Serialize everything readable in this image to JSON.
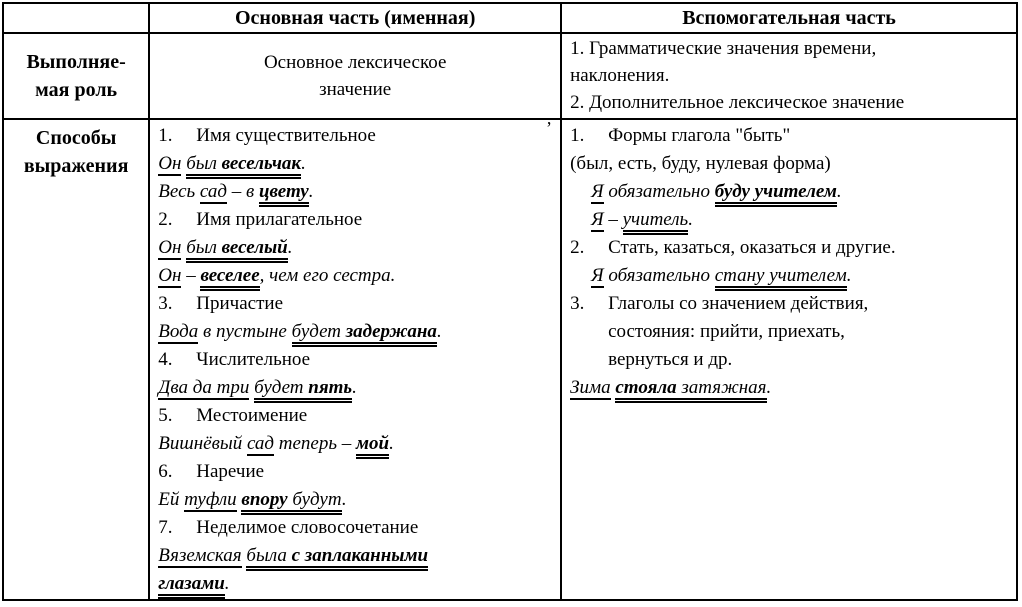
{
  "table": {
    "header": {
      "empty": "",
      "main": "Основная часть (именная)",
      "aux": "Вспомогательная часть"
    },
    "role_row": {
      "label": [
        "Выполняе-",
        "мая роль"
      ],
      "main": [
        "Основное лексическое",
        "значение"
      ],
      "aux_lines": [
        {
          "kind": "text",
          "segs": [
            {
              "t": "1. Грамматические значения времени,",
              "s": "plain"
            }
          ]
        },
        {
          "kind": "text",
          "segs": [
            {
              "t": "наклонения.",
              "s": "plain"
            }
          ]
        },
        {
          "kind": "text",
          "segs": [
            {
              "t": "2. Дополнительное лексическое значение",
              "s": "plain"
            }
          ]
        }
      ]
    },
    "ways_row": {
      "label": [
        "Способы",
        "выражения"
      ],
      "main_lines": [
        {
          "kind": "item",
          "segs": [
            {
              "t": "1.",
              "s": "num"
            },
            {
              "t": "Имя существительное",
              "s": "plain"
            }
          ]
        },
        {
          "kind": "example",
          "segs": [
            {
              "t": "Он",
              "s": "subj"
            },
            {
              "t": " ",
              "s": "plain"
            },
            {
              "t": "был ",
              "s": "pred"
            },
            {
              "t": "весельчак",
              "s": "predbold"
            },
            {
              "t": ".",
              "s": "plain"
            }
          ]
        },
        {
          "kind": "example",
          "segs": [
            {
              "t": "Весь ",
              "s": "plain"
            },
            {
              "t": "сад",
              "s": "subj"
            },
            {
              "t": " – в ",
              "s": "plain"
            },
            {
              "t": "цвету",
              "s": "predbold"
            },
            {
              "t": ".",
              "s": "plain"
            }
          ]
        },
        {
          "kind": "item",
          "segs": [
            {
              "t": "2.",
              "s": "num"
            },
            {
              "t": "Имя прилагательное",
              "s": "plain"
            }
          ]
        },
        {
          "kind": "example",
          "segs": [
            {
              "t": "Он",
              "s": "subj"
            },
            {
              "t": " ",
              "s": "plain"
            },
            {
              "t": "был ",
              "s": "pred"
            },
            {
              "t": "веселый",
              "s": "predbold"
            },
            {
              "t": ".",
              "s": "plain"
            }
          ]
        },
        {
          "kind": "example",
          "segs": [
            {
              "t": "Он",
              "s": "subj"
            },
            {
              "t": " – ",
              "s": "plain"
            },
            {
              "t": "веселее",
              "s": "predbold"
            },
            {
              "t": ", чем его сестра.",
              "s": "plain"
            }
          ]
        },
        {
          "kind": "item",
          "segs": [
            {
              "t": "3.",
              "s": "num"
            },
            {
              "t": "Причастие",
              "s": "plain"
            }
          ]
        },
        {
          "kind": "example",
          "segs": [
            {
              "t": "Вода",
              "s": "subj"
            },
            {
              "t": " в пустыне ",
              "s": "plain"
            },
            {
              "t": "будет ",
              "s": "pred"
            },
            {
              "t": "задержана",
              "s": "predbold"
            },
            {
              "t": ".",
              "s": "plain"
            }
          ]
        },
        {
          "kind": "item",
          "segs": [
            {
              "t": "4.",
              "s": "num"
            },
            {
              "t": "Числительное",
              "s": "plain"
            }
          ]
        },
        {
          "kind": "example",
          "segs": [
            {
              "t": "Два да три",
              "s": "subj"
            },
            {
              "t": " ",
              "s": "plain"
            },
            {
              "t": "будет ",
              "s": "pred"
            },
            {
              "t": "пять",
              "s": "predbold"
            },
            {
              "t": ".",
              "s": "plain"
            }
          ]
        },
        {
          "kind": "item",
          "segs": [
            {
              "t": "5.",
              "s": "num"
            },
            {
              "t": "Местоимение",
              "s": "plain"
            }
          ]
        },
        {
          "kind": "example",
          "segs": [
            {
              "t": "Вишнёвый ",
              "s": "plain"
            },
            {
              "t": "сад",
              "s": "subj"
            },
            {
              "t": " теперь – ",
              "s": "plain"
            },
            {
              "t": "мой",
              "s": "predbold"
            },
            {
              "t": ".",
              "s": "plain"
            }
          ]
        },
        {
          "kind": "item",
          "segs": [
            {
              "t": "6.",
              "s": "num"
            },
            {
              "t": "Наречие",
              "s": "plain"
            }
          ]
        },
        {
          "kind": "example",
          "segs": [
            {
              "t": "Ей ",
              "s": "plain"
            },
            {
              "t": "туфли",
              "s": "subj"
            },
            {
              "t": " ",
              "s": "plain"
            },
            {
              "t": "впору",
              "s": "predbold"
            },
            {
              "t": " будут",
              "s": "pred"
            },
            {
              "t": ".",
              "s": "plain"
            }
          ]
        },
        {
          "kind": "item",
          "segs": [
            {
              "t": "7.",
              "s": "num"
            },
            {
              "t": "Неделимое словосочетание",
              "s": "plain"
            }
          ]
        },
        {
          "kind": "example",
          "segs": [
            {
              "t": "Вяземская",
              "s": "subj"
            },
            {
              "t": " ",
              "s": "plain"
            },
            {
              "t": "была ",
              "s": "pred"
            },
            {
              "t": "с заплаканными",
              "s": "predbold"
            }
          ]
        },
        {
          "kind": "example",
          "segs": [
            {
              "t": "глазами",
              "s": "predbold"
            },
            {
              "t": ".",
              "s": "plain"
            }
          ]
        }
      ],
      "aux_lines": [
        {
          "kind": "item",
          "segs": [
            {
              "t": "1.",
              "s": "num"
            },
            {
              "t": "Формы глагола \"быть\"",
              "s": "plain"
            }
          ]
        },
        {
          "kind": "text",
          "segs": [
            {
              "t": "(был, есть, буду, нулевая форма)",
              "s": "plain"
            }
          ]
        },
        {
          "kind": "example",
          "ind": 1,
          "segs": [
            {
              "t": "Я",
              "s": "subj"
            },
            {
              "t": " обязательно ",
              "s": "plain"
            },
            {
              "t": "буду учителем",
              "s": "predbold"
            },
            {
              "t": ".",
              "s": "plain"
            }
          ]
        },
        {
          "kind": "example",
          "ind": 1,
          "segs": [
            {
              "t": "Я",
              "s": "subj"
            },
            {
              "t": " – ",
              "s": "plain"
            },
            {
              "t": "учитель",
              "s": "pred"
            },
            {
              "t": ".",
              "s": "plain"
            }
          ]
        },
        {
          "kind": "item",
          "segs": [
            {
              "t": "2.",
              "s": "num"
            },
            {
              "t": "Стать, казаться, оказаться и другие.",
              "s": "plain"
            }
          ]
        },
        {
          "kind": "example",
          "ind": 1,
          "segs": [
            {
              "t": "Я",
              "s": "subj"
            },
            {
              "t": " обязательно ",
              "s": "plain"
            },
            {
              "t": "стану учителем",
              "s": "pred"
            },
            {
              "t": ".",
              "s": "plain"
            }
          ]
        },
        {
          "kind": "item",
          "segs": [
            {
              "t": "3.",
              "s": "num"
            },
            {
              "t": "Глаголы со значением действия,",
              "s": "plain"
            }
          ]
        },
        {
          "kind": "text",
          "ind": 2,
          "segs": [
            {
              "t": "состояния: прийти, приехать,",
              "s": "plain"
            }
          ]
        },
        {
          "kind": "text",
          "ind": 2,
          "segs": [
            {
              "t": "вернуться и др.",
              "s": "plain"
            }
          ]
        },
        {
          "kind": "example",
          "segs": [
            {
              "t": "Зима",
              "s": "subj"
            },
            {
              "t": " ",
              "s": "plain"
            },
            {
              "t": "стояла ",
              "s": "predbold"
            },
            {
              "t": "затяжная",
              "s": "pred"
            },
            {
              "t": ".",
              "s": "plain"
            }
          ]
        }
      ]
    }
  },
  "artifacts": {
    "stray_mark": "’"
  }
}
